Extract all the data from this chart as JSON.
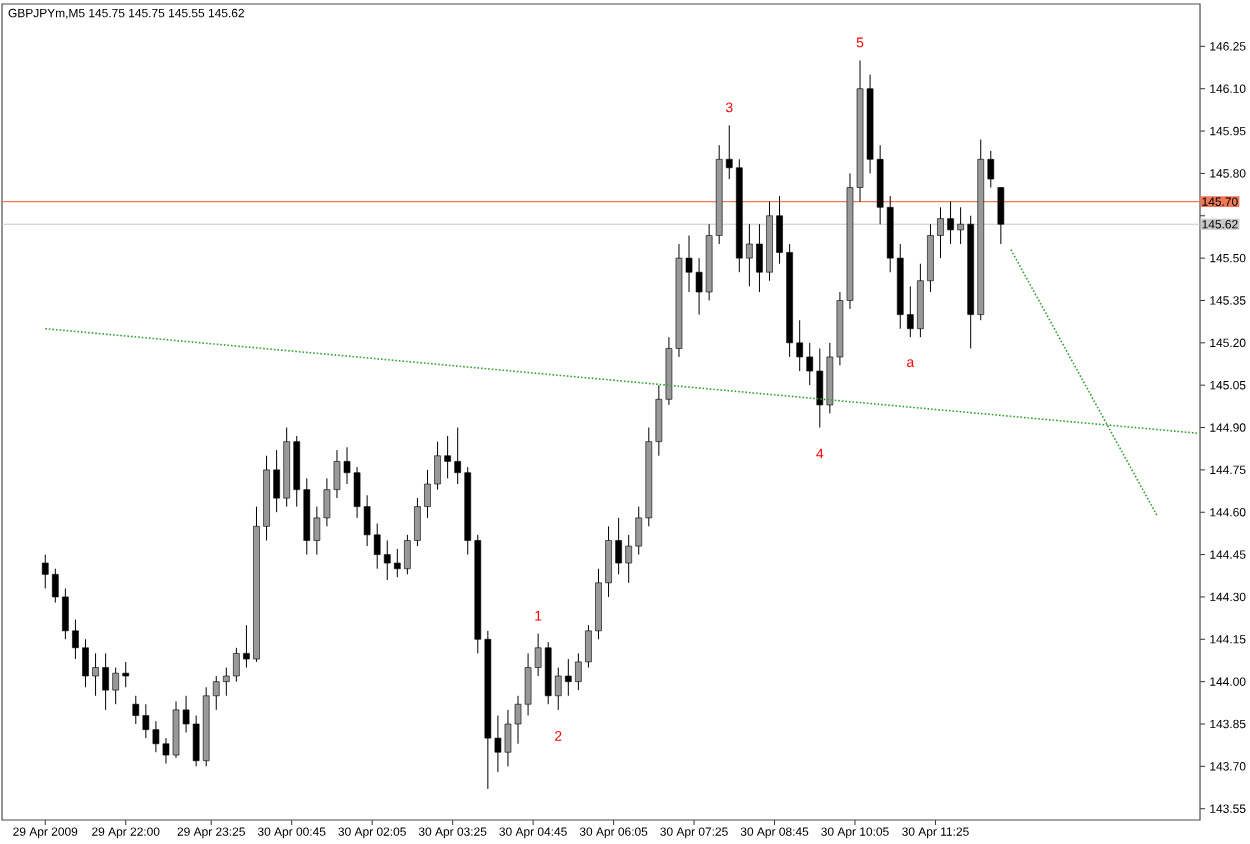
{
  "chart_data": {
    "type": "candlestick",
    "title": "GBPJPYm,M5  145.75 145.75 145.55 145.62",
    "color": "#000000",
    "x": [
      "2009-04-29T20:40",
      "2009-04-29T20:50",
      "2009-04-29T21:00",
      "2009-04-29T21:10",
      "2009-04-29T21:20",
      "2009-04-29T21:30",
      "2009-04-29T21:40",
      "2009-04-29T21:50",
      "2009-04-29T22:00",
      "2009-04-29T22:10",
      "2009-04-29T22:20",
      "2009-04-29T22:30",
      "2009-04-29T22:40",
      "2009-04-29T22:50",
      "2009-04-29T23:00",
      "2009-04-29T23:10",
      "2009-04-29T23:20",
      "2009-04-29T23:30",
      "2009-04-29T23:40",
      "2009-04-29T23:50",
      "2009-04-30T00:00",
      "2009-04-30T00:10",
      "2009-04-30T00:20",
      "2009-04-30T00:30",
      "2009-04-30T00:40",
      "2009-04-30T00:50",
      "2009-04-30T01:00",
      "2009-04-30T01:10",
      "2009-04-30T01:20",
      "2009-04-30T01:30",
      "2009-04-30T01:40",
      "2009-04-30T01:50",
      "2009-04-30T02:00",
      "2009-04-30T02:10",
      "2009-04-30T02:20",
      "2009-04-30T02:30",
      "2009-04-30T02:40",
      "2009-04-30T02:50",
      "2009-04-30T03:00",
      "2009-04-30T03:10",
      "2009-04-30T03:20",
      "2009-04-30T03:30",
      "2009-04-30T03:40",
      "2009-04-30T03:50",
      "2009-04-30T04:00",
      "2009-04-30T04:10",
      "2009-04-30T04:20",
      "2009-04-30T04:30",
      "2009-04-30T04:40",
      "2009-04-30T04:50",
      "2009-04-30T05:00",
      "2009-04-30T05:10",
      "2009-04-30T05:20",
      "2009-04-30T05:30",
      "2009-04-30T05:40",
      "2009-04-30T05:50",
      "2009-04-30T06:00",
      "2009-04-30T06:10",
      "2009-04-30T06:20",
      "2009-04-30T06:30",
      "2009-04-30T06:40",
      "2009-04-30T06:50",
      "2009-04-30T07:00",
      "2009-04-30T07:10",
      "2009-04-30T07:20",
      "2009-04-30T07:30",
      "2009-04-30T07:40",
      "2009-04-30T07:50",
      "2009-04-30T08:00",
      "2009-04-30T08:10",
      "2009-04-30T08:20",
      "2009-04-30T08:30",
      "2009-04-30T08:40",
      "2009-04-30T08:50",
      "2009-04-30T09:00",
      "2009-04-30T09:10",
      "2009-04-30T09:20",
      "2009-04-30T09:30",
      "2009-04-30T09:40",
      "2009-04-30T09:50",
      "2009-04-30T10:00",
      "2009-04-30T10:10",
      "2009-04-30T10:20",
      "2009-04-30T10:30",
      "2009-04-30T10:40",
      "2009-04-30T10:50",
      "2009-04-30T11:00",
      "2009-04-30T11:10",
      "2009-04-30T11:20",
      "2009-04-30T11:30",
      "2009-04-30T11:40",
      "2009-04-30T11:50",
      "2009-04-30T12:00",
      "2009-04-30T12:10",
      "2009-04-30T12:20",
      "2009-04-30T12:30"
    ],
    "ohlc": [
      [
        144.42,
        144.45,
        144.33,
        144.38
      ],
      [
        144.38,
        144.4,
        144.28,
        144.3
      ],
      [
        144.3,
        144.33,
        144.15,
        144.18
      ],
      [
        144.18,
        144.22,
        144.08,
        144.12
      ],
      [
        144.12,
        144.15,
        143.98,
        144.02
      ],
      [
        144.02,
        144.1,
        143.95,
        144.05
      ],
      [
        144.05,
        144.1,
        143.9,
        143.97
      ],
      [
        143.97,
        144.05,
        143.92,
        144.03
      ],
      [
        144.03,
        144.07,
        143.98,
        144.02
      ],
      [
        143.92,
        143.95,
        143.85,
        143.88
      ],
      [
        143.88,
        143.92,
        143.8,
        143.83
      ],
      [
        143.83,
        143.86,
        143.75,
        143.78
      ],
      [
        143.78,
        143.8,
        143.71,
        143.74
      ],
      [
        143.74,
        143.93,
        143.73,
        143.9
      ],
      [
        143.9,
        143.95,
        143.82,
        143.85
      ],
      [
        143.85,
        143.88,
        143.7,
        143.72
      ],
      [
        143.72,
        143.98,
        143.7,
        143.95
      ],
      [
        143.95,
        144.02,
        143.9,
        144.0
      ],
      [
        144.0,
        144.05,
        143.95,
        144.02
      ],
      [
        144.02,
        144.12,
        144.0,
        144.1
      ],
      [
        144.1,
        144.2,
        144.05,
        144.08
      ],
      [
        144.08,
        144.62,
        144.07,
        144.55
      ],
      [
        144.55,
        144.8,
        144.5,
        144.75
      ],
      [
        144.75,
        144.82,
        144.6,
        144.65
      ],
      [
        144.65,
        144.9,
        144.62,
        144.85
      ],
      [
        144.85,
        144.87,
        144.62,
        144.68
      ],
      [
        144.68,
        144.72,
        144.45,
        144.5
      ],
      [
        144.5,
        144.62,
        144.45,
        144.58
      ],
      [
        144.58,
        144.72,
        144.55,
        144.68
      ],
      [
        144.68,
        144.82,
        144.65,
        144.78
      ],
      [
        144.78,
        144.83,
        144.7,
        144.74
      ],
      [
        144.74,
        144.76,
        144.58,
        144.62
      ],
      [
        144.62,
        144.66,
        144.48,
        144.52
      ],
      [
        144.52,
        144.56,
        144.4,
        144.45
      ],
      [
        144.45,
        144.5,
        144.36,
        144.42
      ],
      [
        144.42,
        144.47,
        144.37,
        144.4
      ],
      [
        144.4,
        144.52,
        144.38,
        144.5
      ],
      [
        144.5,
        144.65,
        144.48,
        144.62
      ],
      [
        144.62,
        144.75,
        144.58,
        144.7
      ],
      [
        144.7,
        144.85,
        144.68,
        144.8
      ],
      [
        144.8,
        144.87,
        144.72,
        144.78
      ],
      [
        144.78,
        144.9,
        144.7,
        144.74
      ],
      [
        144.74,
        144.76,
        144.45,
        144.5
      ],
      [
        144.5,
        144.52,
        144.1,
        144.15
      ],
      [
        144.15,
        144.18,
        143.62,
        143.8
      ],
      [
        143.8,
        143.88,
        143.68,
        143.75
      ],
      [
        143.75,
        143.9,
        143.7,
        143.85
      ],
      [
        143.85,
        143.95,
        143.78,
        143.92
      ],
      [
        143.92,
        144.1,
        143.88,
        144.05
      ],
      [
        144.05,
        144.17,
        144.02,
        144.12
      ],
      [
        144.12,
        144.14,
        143.92,
        143.95
      ],
      [
        143.95,
        144.05,
        143.9,
        144.02
      ],
      [
        144.02,
        144.08,
        143.95,
        144.0
      ],
      [
        144.0,
        144.1,
        143.97,
        144.07
      ],
      [
        144.07,
        144.2,
        144.05,
        144.18
      ],
      [
        144.18,
        144.4,
        144.15,
        144.35
      ],
      [
        144.35,
        144.55,
        144.3,
        144.5
      ],
      [
        144.5,
        144.58,
        144.38,
        144.42
      ],
      [
        144.42,
        144.52,
        144.35,
        144.48
      ],
      [
        144.48,
        144.62,
        144.45,
        144.58
      ],
      [
        144.58,
        144.9,
        144.55,
        144.85
      ],
      [
        144.85,
        145.05,
        144.8,
        145.0
      ],
      [
        145.0,
        145.22,
        144.98,
        145.18
      ],
      [
        145.18,
        145.55,
        145.15,
        145.5
      ],
      [
        145.5,
        145.58,
        145.38,
        145.45
      ],
      [
        145.45,
        145.5,
        145.3,
        145.38
      ],
      [
        145.38,
        145.62,
        145.35,
        145.58
      ],
      [
        145.58,
        145.9,
        145.55,
        145.85
      ],
      [
        145.85,
        145.97,
        145.78,
        145.82
      ],
      [
        145.82,
        145.85,
        145.45,
        145.5
      ],
      [
        145.5,
        145.62,
        145.4,
        145.55
      ],
      [
        145.55,
        145.62,
        145.38,
        145.45
      ],
      [
        145.45,
        145.7,
        145.42,
        145.65
      ],
      [
        145.65,
        145.72,
        145.48,
        145.52
      ],
      [
        145.52,
        145.55,
        145.15,
        145.2
      ],
      [
        145.2,
        145.28,
        145.1,
        145.15
      ],
      [
        145.15,
        145.2,
        145.05,
        145.1
      ],
      [
        145.1,
        145.18,
        144.9,
        144.98
      ],
      [
        144.98,
        145.2,
        144.95,
        145.15
      ],
      [
        145.15,
        145.38,
        145.12,
        145.35
      ],
      [
        145.35,
        145.8,
        145.32,
        145.75
      ],
      [
        145.75,
        146.2,
        145.7,
        146.1
      ],
      [
        146.1,
        146.15,
        145.8,
        145.85
      ],
      [
        145.85,
        145.9,
        145.62,
        145.68
      ],
      [
        145.68,
        145.72,
        145.45,
        145.5
      ],
      [
        145.5,
        145.55,
        145.25,
        145.3
      ],
      [
        145.3,
        145.4,
        145.22,
        145.25
      ],
      [
        145.25,
        145.48,
        145.22,
        145.42
      ],
      [
        145.42,
        145.62,
        145.38,
        145.58
      ],
      [
        145.58,
        145.68,
        145.5,
        145.64
      ],
      [
        145.64,
        145.7,
        145.55,
        145.6
      ],
      [
        145.6,
        145.68,
        145.55,
        145.62
      ],
      [
        145.62,
        145.65,
        145.18,
        145.3
      ],
      [
        145.3,
        145.92,
        145.28,
        145.85
      ],
      [
        145.85,
        145.88,
        145.75,
        145.78
      ],
      [
        145.75,
        145.75,
        145.55,
        145.62
      ]
    ],
    "series": [
      {
        "type": "line",
        "x": [
          "2009-04-29T20:40",
          "2009-04-30T15:45"
        ],
        "values": [
          145.25,
          144.88
        ],
        "color": "#30a030",
        "line_style": "dotted"
      },
      {
        "type": "line",
        "x": [
          "2009-04-30T12:40",
          "2009-04-30T15:05"
        ],
        "values": [
          145.53,
          144.59
        ],
        "color": "#30a030",
        "line_style": "dotted"
      }
    ],
    "xlim": [
      "2009-04-29T19:57",
      "2009-04-30T15:48"
    ],
    "xticks": [
      {
        "value": "2009-04-29T20:40",
        "label": "29 Apr 2009"
      },
      {
        "value": "2009-04-29T22:00",
        "label": "29 Apr 22:00"
      },
      {
        "value": "2009-04-29T23:25",
        "label": "29 Apr 23:25"
      },
      {
        "value": "2009-04-30T00:45",
        "label": "30 Apr 00:45"
      },
      {
        "value": "2009-04-30T02:05",
        "label": "30 Apr 02:05"
      },
      {
        "value": "2009-04-30T03:25",
        "label": "30 Apr 03:25"
      },
      {
        "value": "2009-04-30T04:45",
        "label": "30 Apr 04:45"
      },
      {
        "value": "2009-04-30T06:05",
        "label": "30 Apr 06:05"
      },
      {
        "value": "2009-04-30T07:25",
        "label": "30 Apr 07:25"
      },
      {
        "value": "2009-04-30T08:45",
        "label": "30 Apr 08:45"
      },
      {
        "value": "2009-04-30T10:05",
        "label": "30 Apr 10:05"
      },
      {
        "value": "2009-04-30T11:25",
        "label": "30 Apr 11:25"
      }
    ],
    "ylim": [
      143.51,
      146.4
    ],
    "yticks": [
      143.55,
      {
        "value": 143.7,
        "label": "143.70"
      },
      143.85,
      {
        "value": 144,
        "label": "144.00"
      },
      144.15,
      {
        "value": 144.3,
        "label": "144.30"
      },
      144.45,
      {
        "value": 144.6,
        "label": "144.60"
      },
      144.75,
      {
        "value": 144.9,
        "label": "144.90"
      },
      145.05,
      {
        "value": 145.2,
        "label": "145.20"
      },
      145.35,
      {
        "value": 145.5,
        "label": "145.50"
      },
      {
        "value": 145.65,
        "label": null
      },
      {
        "value": 145.8,
        "label": "145.80"
      },
      145.95,
      {
        "value": 146.1,
        "label": "146.10"
      },
      146.25
    ],
    "ref_lines": [
      {
        "axis": "y",
        "value": 145.7,
        "label": "145.70",
        "color": "#f07858"
      },
      {
        "axis": "y",
        "value": 145.62,
        "label": "145.62",
        "color": "#c8c8c8"
      }
    ],
    "annotations": [
      {
        "text": "1",
        "x": "2009-04-30T04:50",
        "y": 144.17
      },
      {
        "text": "2",
        "x": "2009-04-30T05:10",
        "y": 143.9
      },
      {
        "text": "3",
        "x": "2009-04-30T08:00",
        "y": 145.97
      },
      {
        "text": "4",
        "x": "2009-04-30T09:30",
        "y": 144.9
      },
      {
        "text": "5",
        "x": "2009-04-30T10:10",
        "y": 146.2
      },
      {
        "text": "a",
        "x": "2009-04-30T11:00",
        "y": 145.22
      }
    ]
  }
}
